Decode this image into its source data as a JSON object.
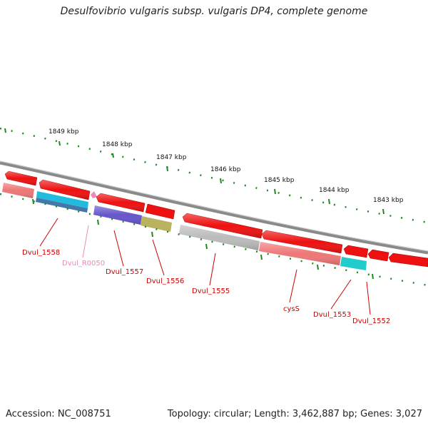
{
  "title": "Desulfovibrio vulgaris subsp. vulgaris DP4, complete genome",
  "footer": {
    "accession": "Accession: NC_008751",
    "summary": "Topology: circular; Length: 3,462,887 bp; Genes: 3,027"
  },
  "scale_labels": [
    "1849 kbp",
    "1848 kbp",
    "1847 kbp",
    "1846 kbp",
    "1845 kbp",
    "1844 kbp",
    "1843 kbp"
  ],
  "gene_labels": [
    {
      "text": "Dvul_1558",
      "color": "#cc0000"
    },
    {
      "text": "Dvul_R0050",
      "color": "#ee88bb"
    },
    {
      "text": "Dvul_1557",
      "color": "#cc0000"
    },
    {
      "text": "Dvul_1556",
      "color": "#cc0000"
    },
    {
      "text": "Dvul_1555",
      "color": "#cc0000"
    },
    {
      "text": "cysS",
      "color": "#cc0000"
    },
    {
      "text": "Dvul_1553",
      "color": "#cc0000"
    },
    {
      "text": "Dvul_1552",
      "color": "#cc0000"
    }
  ],
  "colors": {
    "gene": "#ee1111",
    "pseudo": "#ee7777",
    "rna": "#ee88bb",
    "backbone": "#888888",
    "tick": "#228822",
    "cyan": "#22bbdd",
    "steel": "#4477aa",
    "purple": "#6655cc",
    "olive": "#b9b25e",
    "gray": "#bbbbbb",
    "teal": "#22cccc"
  }
}
